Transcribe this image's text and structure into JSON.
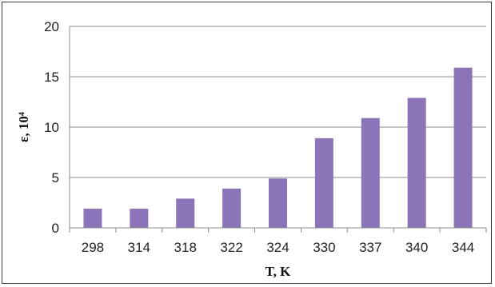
{
  "chart_data": {
    "type": "bar",
    "categories": [
      "298",
      "314",
      "318",
      "322",
      "324",
      "330",
      "337",
      "340",
      "344"
    ],
    "values": [
      1.9,
      1.9,
      2.9,
      3.9,
      4.9,
      8.9,
      10.9,
      12.9,
      15.9
    ],
    "xlabel": "T, K",
    "ylabel": "ε, 10⁴",
    "ylim": [
      0,
      20
    ],
    "yticks": [
      "0",
      "5",
      "10",
      "15",
      "20"
    ],
    "grid": "horizontal",
    "legend": "none",
    "bar_color": "#8b74b8"
  }
}
